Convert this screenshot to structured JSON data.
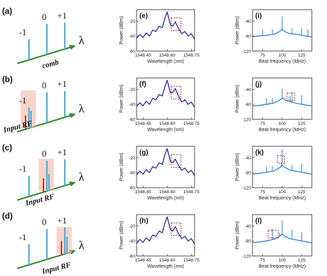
{
  "colors": {
    "comb_line": "#4aa8d8",
    "arrow": "#2e8b2e",
    "rf_line": "#c0392b",
    "highlight": "#f4b8a8",
    "spectrum": "#1f2a9e",
    "beat": "#2b7fd0",
    "dashed_box": "#b22222"
  },
  "schematic": {
    "panels": [
      {
        "label": "(a)",
        "orders": [
          "-1",
          "0",
          "+1"
        ],
        "axis_symbol": "λ",
        "note": "comb"
      },
      {
        "label": "(b)",
        "orders": [
          "-1",
          "0",
          "+1"
        ],
        "axis_symbol": "λ",
        "note": "Input RF"
      },
      {
        "label": "(c)",
        "orders": [
          "-1",
          "0",
          "+1"
        ],
        "axis_symbol": "λ",
        "note": "Input RF"
      },
      {
        "label": "(d)",
        "orders": [
          "-1",
          "0",
          "+1"
        ],
        "axis_symbol": "λ",
        "note": "Input RF"
      }
    ]
  },
  "chart_data": [
    {
      "type": "line",
      "group": "optical",
      "panel_labels": [
        "(e)",
        "(f)",
        "(g)",
        "(h)"
      ],
      "xlabel": "Wavelength (nm)",
      "ylabel": "Power (dBm)",
      "xlim": [
        1548.41,
        1548.77
      ],
      "ylim": [
        -60,
        -5
      ],
      "xticks": [
        "1548.45",
        "1548.60",
        "1548.75"
      ],
      "yticks": [
        "-20",
        "-40",
        "-60"
      ],
      "x": [
        1548.41,
        1548.43,
        1548.45,
        1548.47,
        1548.49,
        1548.51,
        1548.53,
        1548.55,
        1548.57,
        1548.585,
        1548.6,
        1548.62,
        1548.635,
        1548.65,
        1548.67,
        1548.69,
        1548.71,
        1548.73,
        1548.75,
        1548.77
      ],
      "series": [
        {
          "values": [
            -43,
            -38,
            -42,
            -36,
            -40,
            -32,
            -34,
            -27,
            -29,
            -17,
            -8,
            -25,
            -27,
            -21,
            -30,
            -37,
            -34,
            -40,
            -37,
            -44
          ]
        },
        {
          "values": [
            -43,
            -38,
            -42,
            -36,
            -40,
            -32,
            -34,
            -27,
            -29,
            -17,
            -8,
            -25,
            -24,
            -19,
            -29,
            -37,
            -34,
            -40,
            -37,
            -44
          ]
        },
        {
          "values": [
            -43,
            -38,
            -42,
            -36,
            -40,
            -32,
            -34,
            -27,
            -29,
            -17,
            -8,
            -25,
            -27,
            -22,
            -30,
            -37,
            -34,
            -40,
            -37,
            -44
          ]
        },
        {
          "values": [
            -43,
            -38,
            -42,
            -36,
            -40,
            -32,
            -34,
            -27,
            -29,
            -17,
            -8,
            -25,
            -27,
            -21,
            -30,
            -37,
            -34,
            -40,
            -37,
            -44
          ]
        }
      ]
    },
    {
      "type": "line",
      "group": "beat",
      "panel_labels": [
        "(i)",
        "(j)",
        "(k)",
        "(l)"
      ],
      "xlabel": "Beat frequency (MHz)",
      "ylabel": "Power (dBm)",
      "xlim": [
        62,
        138
      ],
      "ylim": [
        -120,
        -10
      ],
      "xticks": [
        "75",
        "100",
        "125"
      ],
      "yticks": [
        "-40",
        "-80",
        "-120"
      ],
      "x": [
        62,
        70,
        80,
        90,
        95,
        98,
        100,
        102,
        105,
        110,
        120,
        130,
        138
      ],
      "series": [
        {
          "values": [
            -82,
            -80,
            -78,
            -75,
            -70,
            -66,
            -62,
            -66,
            -70,
            -74,
            -76,
            -80,
            -82
          ]
        },
        {
          "values": [
            -85,
            -83,
            -80,
            -76,
            -71,
            -67,
            -63,
            -66,
            -70,
            -73,
            -78,
            -82,
            -84
          ]
        },
        {
          "values": [
            -84,
            -82,
            -79,
            -75,
            -69,
            -65,
            -60,
            -64,
            -68,
            -73,
            -77,
            -81,
            -84
          ]
        },
        {
          "values": [
            -85,
            -83,
            -80,
            -75,
            -70,
            -66,
            -62,
            -66,
            -70,
            -74,
            -78,
            -82,
            -85
          ]
        }
      ],
      "spurs": [
        {
          "x": [
            75,
            87.5,
            100,
            112.5,
            125,
            133
          ],
          "peak": [
            -62,
            -62,
            -28,
            -60,
            -60,
            -62
          ]
        },
        {
          "x": [
            80,
            87.5,
            100,
            110,
            112.5,
            125
          ],
          "peak": [
            -64,
            -64,
            -38,
            -58,
            -48,
            -56
          ]
        },
        {
          "x": [
            80,
            87.5,
            100,
            112.5,
            125
          ],
          "peak": [
            -64,
            -62,
            -18,
            -60,
            -56
          ]
        },
        {
          "x": [
            87.5,
            97,
            100,
            112.5,
            125
          ],
          "peak": [
            -48,
            -58,
            -25,
            -50,
            -56
          ]
        }
      ],
      "highlight_boxes": [
        null,
        {
          "x": [
            106,
            116
          ],
          "y": [
            -70,
            -50
          ]
        },
        {
          "x": [
            94,
            103
          ],
          "y": [
            -55,
            -35
          ]
        },
        {
          "x": [
            82,
            95
          ],
          "y": [
            -72,
            -52
          ]
        }
      ]
    }
  ]
}
